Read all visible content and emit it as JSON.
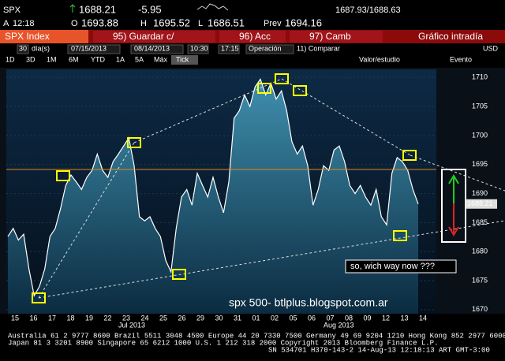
{
  "header": {
    "ticker": "SPX",
    "last": 1688.21,
    "change": -5.95,
    "bid_ask": "1687.93/1688.63",
    "time_label": "A",
    "time": "12:18",
    "open_label": "O",
    "open": 1693.88,
    "high_label": "H",
    "high": 1695.52,
    "low_label": "L",
    "low": 1686.51,
    "prev_label": "Prev",
    "prev": 1694.16
  },
  "toolbar": {
    "security": "SPX Index",
    "buttons": [
      "95) Guardar c/",
      "96) Acc",
      "97) Camb"
    ],
    "title": "Gráfico intradía"
  },
  "controls": {
    "days": "30",
    "days_unit": "día(s)",
    "start_date": "07/15/2013",
    "end_date": "08/14/2013",
    "start_time": "10:30",
    "end_time": "17:15",
    "mode": "Operación",
    "compare": "11) Comparar",
    "currency": "USD",
    "periods": [
      "1D",
      "3D",
      "1M",
      "6M",
      "YTD",
      "1A",
      "5A",
      "Máx",
      "Tick"
    ],
    "study": "Valor/estudio",
    "event": "Evento"
  },
  "chart": {
    "type": "line",
    "ylim": [
      1669.3,
      1711.4
    ],
    "yticks": [
      1670,
      1675,
      1680,
      1685,
      1690,
      1695,
      1700,
      1705,
      1710
    ],
    "x_labels": [
      "15",
      "16",
      "17",
      "18",
      "19",
      "22",
      "23",
      "24",
      "25",
      "26",
      "29",
      "30",
      "31",
      "01",
      "02",
      "05",
      "06",
      "07",
      "08",
      "09",
      "12",
      "13",
      "14"
    ],
    "months": [
      "Jul 2013",
      "Aug 2013"
    ],
    "values": [
      1682.6,
      1684,
      1682,
      1683,
      1677,
      1672.4,
      1674,
      1677,
      1682.6,
      1684,
      1687.4,
      1691.4,
      1693.2,
      1692,
      1690.7,
      1692.8,
      1694,
      1696.8,
      1694,
      1692.8,
      1695.5,
      1696.8,
      1698.2,
      1699.6,
      1694.8,
      1686,
      1685.3,
      1686,
      1684,
      1682.6,
      1678.5,
      1676.5,
      1684,
      1689.4,
      1690.7,
      1688,
      1693.5,
      1691.4,
      1689.4,
      1692.8,
      1689.4,
      1686.7,
      1692,
      1703,
      1704.3,
      1707,
      1705,
      1708.4,
      1709.7,
      1707,
      1709,
      1706.3,
      1707.7,
      1704.3,
      1698.9,
      1696.8,
      1698.2,
      1694.8,
      1688,
      1690.7,
      1694.8,
      1694,
      1697.5,
      1698.2,
      1695.5,
      1691.4,
      1690,
      1691.4,
      1689.4,
      1688,
      1690.7,
      1686,
      1684.6,
      1693.5,
      1696.2,
      1695.5,
      1694,
      1690.7,
      1688.2
    ],
    "annotation": "so, wich way now ???",
    "watermark": "spx 500-  btlplus.blogspot.com.ar"
  },
  "footer": [
    "Australia 61 2 9777 8600 Brazil 5511 3048 4500 Europe 44 20 7330 7500 Germany 49 69 9204 1210 Hong Kong 852 2977 6000",
    "Japan 81 3 3201 8900       Singapore 65 6212 1000       U.S. 1 212 318 2000       Copyright 2013 Bloomberg Finance L.P.",
    "SN 534701 H370-143-2 14-Aug-13 12:18:13 ART  GMT-3:00"
  ]
}
